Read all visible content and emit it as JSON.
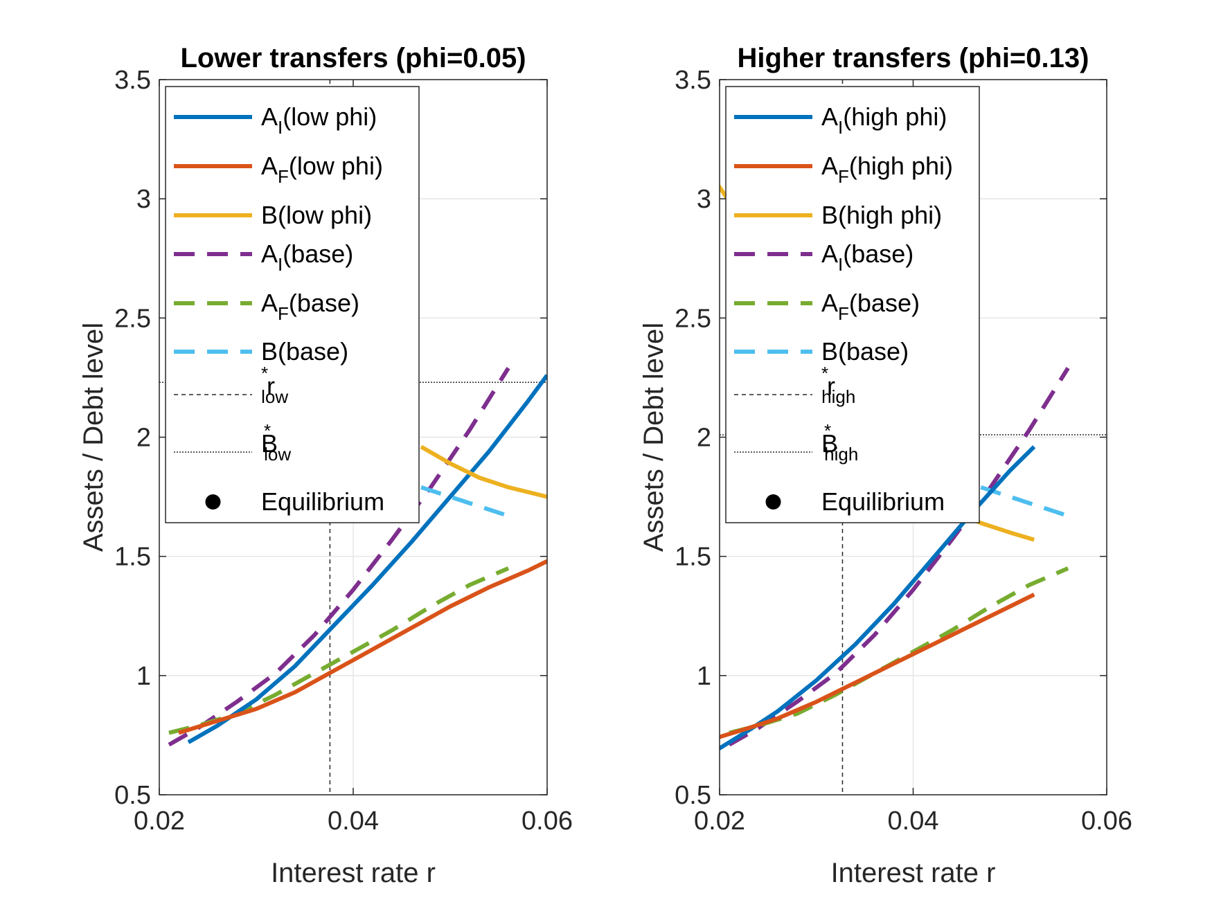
{
  "chart_data": [
    {
      "type": "line",
      "title": "Lower transfers (phi=0.05)",
      "xlabel": "Interest rate r",
      "ylabel": "Assets / Debt level",
      "xlim": [
        0.02,
        0.06
      ],
      "ylim": [
        0.5,
        3.5
      ],
      "xticks": [
        "0.02",
        "0.04",
        "0.06"
      ],
      "yticks": [
        "0.5",
        "1",
        "1.5",
        "2",
        "2.5",
        "3",
        "3.5"
      ],
      "grid": true,
      "legend_position": "top-left",
      "series": [
        {
          "key": "AI_phi",
          "legend": {
            "base": "A",
            "sub": "I",
            "rest": "(low phi)"
          },
          "color": "#0072BD",
          "dash": "solid",
          "x": [
            0.023,
            0.026,
            0.03,
            0.034,
            0.038,
            0.042,
            0.046,
            0.05,
            0.054,
            0.058,
            0.06
          ],
          "y": [
            0.72,
            0.79,
            0.9,
            1.04,
            1.21,
            1.38,
            1.56,
            1.75,
            1.94,
            2.15,
            2.26
          ]
        },
        {
          "key": "AF_phi",
          "legend": {
            "base": "A",
            "sub": "F",
            "rest": "(low phi)"
          },
          "color": "#D95319",
          "dash": "solid",
          "x": [
            0.022,
            0.026,
            0.03,
            0.034,
            0.038,
            0.042,
            0.046,
            0.05,
            0.054,
            0.058,
            0.06
          ],
          "y": [
            0.76,
            0.81,
            0.86,
            0.93,
            1.02,
            1.11,
            1.2,
            1.29,
            1.37,
            1.44,
            1.48
          ]
        },
        {
          "key": "B_phi",
          "legend": {
            "base": "B",
            "sub": "",
            "rest": "(low phi)"
          },
          "color": "#EDB120",
          "dash": "solid",
          "x": [
            0.047,
            0.05,
            0.053,
            0.056,
            0.06
          ],
          "y": [
            1.96,
            1.89,
            1.83,
            1.79,
            1.75
          ]
        },
        {
          "key": "AI_base",
          "legend": {
            "base": "A",
            "sub": "I",
            "rest": "(base)"
          },
          "color": "#7E2F8E",
          "dash": "dashed",
          "x": [
            0.021,
            0.024,
            0.028,
            0.032,
            0.036,
            0.04,
            0.044,
            0.048,
            0.052,
            0.056
          ],
          "y": [
            0.71,
            0.78,
            0.89,
            1.01,
            1.17,
            1.36,
            1.57,
            1.79,
            2.03,
            2.29
          ]
        },
        {
          "key": "AF_base",
          "legend": {
            "base": "A",
            "sub": "F",
            "rest": "(base)"
          },
          "color": "#77AC30",
          "dash": "dashed",
          "x": [
            0.021,
            0.024,
            0.028,
            0.032,
            0.036,
            0.04,
            0.044,
            0.048,
            0.052,
            0.056
          ],
          "y": [
            0.76,
            0.79,
            0.84,
            0.92,
            1.01,
            1.1,
            1.19,
            1.29,
            1.38,
            1.45
          ]
        },
        {
          "key": "B_base",
          "legend": {
            "base": "B",
            "sub": "",
            "rest": "(base)"
          },
          "color": "#4DBEEE",
          "dash": "dashed",
          "x": [
            0.047,
            0.05,
            0.053,
            0.056
          ],
          "y": [
            1.79,
            1.75,
            1.71,
            1.67
          ]
        }
      ],
      "refs": [
        {
          "key": "r_star",
          "kind": "vline",
          "value": 0.0376,
          "style": "dashed",
          "legend": {
            "base": "r",
            "sup": "*",
            "sub": "low"
          }
        },
        {
          "key": "B_star",
          "kind": "hline",
          "value": 2.23,
          "style": "dotted",
          "legend": {
            "base": "B",
            "sup": "*",
            "sub": "low"
          }
        }
      ],
      "equilibrium_legend": "Equilibrium"
    },
    {
      "type": "line",
      "title": "Higher transfers (phi=0.13)",
      "xlabel": "Interest rate r",
      "ylabel": "Assets / Debt level",
      "xlim": [
        0.02,
        0.06
      ],
      "ylim": [
        0.5,
        3.5
      ],
      "xticks": [
        "0.02",
        "0.04",
        "0.06"
      ],
      "yticks": [
        "0.5",
        "1",
        "1.5",
        "2",
        "2.5",
        "3",
        "3.5"
      ],
      "grid": true,
      "legend_position": "top-left",
      "series": [
        {
          "key": "AI_phi",
          "legend": {
            "base": "A",
            "sub": "I",
            "rest": "(high phi)"
          },
          "color": "#0072BD",
          "dash": "solid",
          "x": [
            0.0198,
            0.023,
            0.026,
            0.03,
            0.034,
            0.038,
            0.042,
            0.046,
            0.05,
            0.0525
          ],
          "y": [
            0.69,
            0.77,
            0.85,
            0.98,
            1.13,
            1.3,
            1.49,
            1.68,
            1.86,
            1.96
          ]
        },
        {
          "key": "AF_phi",
          "legend": {
            "base": "A",
            "sub": "F",
            "rest": "(high phi)"
          },
          "color": "#D95319",
          "dash": "solid",
          "x": [
            0.0198,
            0.023,
            0.026,
            0.03,
            0.034,
            0.038,
            0.042,
            0.046,
            0.05,
            0.0525
          ],
          "y": [
            0.74,
            0.78,
            0.82,
            0.89,
            0.97,
            1.05,
            1.13,
            1.21,
            1.29,
            1.34
          ]
        },
        {
          "key": "B_phi",
          "legend": {
            "base": "B",
            "sub": "",
            "rest": "(high phi)"
          },
          "color": "#EDB120",
          "dash": "solid",
          "x": [
            0.0198,
            0.021,
            0.022,
            0.044,
            0.047,
            0.05,
            0.0525
          ],
          "y": [
            3.06,
            2.99,
            2.93,
            1.69,
            1.64,
            1.6,
            1.57
          ]
        },
        {
          "key": "AI_base",
          "legend": {
            "base": "A",
            "sub": "I",
            "rest": "(base)"
          },
          "color": "#7E2F8E",
          "dash": "dashed",
          "x": [
            0.021,
            0.024,
            0.028,
            0.032,
            0.036,
            0.04,
            0.044,
            0.048,
            0.052,
            0.056
          ],
          "y": [
            0.71,
            0.78,
            0.89,
            1.01,
            1.17,
            1.36,
            1.57,
            1.79,
            2.03,
            2.29
          ]
        },
        {
          "key": "AF_base",
          "legend": {
            "base": "A",
            "sub": "F",
            "rest": "(base)"
          },
          "color": "#77AC30",
          "dash": "dashed",
          "x": [
            0.021,
            0.024,
            0.028,
            0.032,
            0.036,
            0.04,
            0.044,
            0.048,
            0.052,
            0.056
          ],
          "y": [
            0.76,
            0.79,
            0.84,
            0.92,
            1.01,
            1.1,
            1.19,
            1.29,
            1.38,
            1.45
          ]
        },
        {
          "key": "B_base",
          "legend": {
            "base": "B",
            "sub": "",
            "rest": "(base)"
          },
          "color": "#4DBEEE",
          "dash": "dashed",
          "x": [
            0.047,
            0.05,
            0.053,
            0.056
          ],
          "y": [
            1.79,
            1.75,
            1.71,
            1.67
          ]
        }
      ],
      "refs": [
        {
          "key": "r_star",
          "kind": "vline",
          "value": 0.0327,
          "style": "dashed",
          "legend": {
            "base": "r",
            "sup": "*",
            "sub": "high"
          }
        },
        {
          "key": "B_star",
          "kind": "hline",
          "value": 2.01,
          "style": "dotted",
          "legend": {
            "base": "B",
            "sup": "*",
            "sub": "high"
          }
        }
      ],
      "equilibrium_legend": "Equilibrium"
    }
  ]
}
